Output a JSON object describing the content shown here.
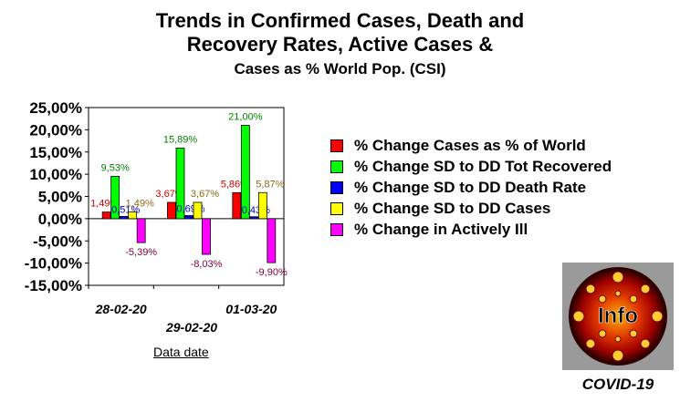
{
  "title_lines": [
    "Trends in Confirmed Cases, Death and",
    "Recovery Rates, Active Cases &",
    "Cases as % World Pop. (CSI)"
  ],
  "x_axis_title": "Data date",
  "logo": {
    "text": "Info",
    "caption": "COVID-19"
  },
  "chart_data": {
    "type": "bar",
    "categories": [
      "28-02-20",
      "29-02-20",
      "01-03-20"
    ],
    "ylim": [
      -15,
      25
    ],
    "yticks": [
      25,
      20,
      15,
      10,
      5,
      0,
      -5,
      -10,
      -15
    ],
    "ytick_labels": [
      "25,00%",
      "20,00%",
      "15,00%",
      "10,00%",
      "5,00%",
      "0,00%",
      "-5,00%",
      "-10,00%",
      "-15,00%"
    ],
    "xlabel": "Data date",
    "legend_position": "right",
    "grid": false,
    "series": [
      {
        "name": "% Change Cases as % of World",
        "color": "#ff0000",
        "label_color": "#cc0000",
        "values": [
          1.49,
          3.67,
          5.86
        ],
        "labels": [
          "1,49%",
          "3,67%",
          "5,86%"
        ]
      },
      {
        "name": "% Change SD to DD Tot Recovered",
        "color": "#00ff00",
        "label_color": "#008000",
        "values": [
          9.53,
          15.89,
          21.0
        ],
        "labels": [
          "9,53%",
          "15,89%",
          "21,00%"
        ]
      },
      {
        "name": "% Change SD to DD Death Rate",
        "color": "#0000ff",
        "label_color": "#0000cc",
        "values": [
          0.51,
          0.69,
          0.43
        ],
        "labels": [
          "0,51%",
          "0,69%",
          "0,43%"
        ]
      },
      {
        "name": "% Change SD to DD Cases",
        "color": "#ffff00",
        "label_color": "#8b6914",
        "values": [
          1.49,
          3.67,
          5.87
        ],
        "labels": [
          "1,49%",
          "3,67%",
          "5,87%"
        ]
      },
      {
        "name": "% Change in Actively Ill",
        "color": "#ff00ff",
        "label_color": "#800040",
        "values": [
          -5.39,
          -8.03,
          -9.9
        ],
        "labels": [
          "-5,39%",
          "-8,03%",
          "-9,90%"
        ]
      }
    ]
  }
}
